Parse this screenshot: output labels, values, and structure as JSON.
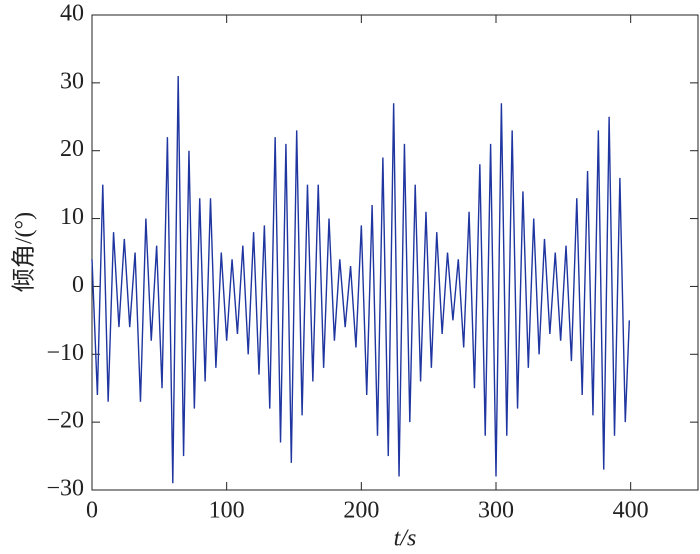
{
  "chart_data": {
    "type": "line",
    "xlabel": "t/s",
    "ylabel": "倾角/(°)",
    "x": [
      0,
      4,
      8,
      12,
      16,
      20,
      24,
      28,
      32,
      36,
      40,
      44,
      48,
      52,
      56,
      60,
      64,
      68,
      72,
      76,
      80,
      84,
      88,
      92,
      96,
      100,
      104,
      108,
      112,
      116,
      120,
      124,
      128,
      132,
      136,
      140,
      144,
      148,
      152,
      156,
      160,
      164,
      168,
      172,
      176,
      180,
      184,
      188,
      192,
      196,
      200,
      204,
      208,
      212,
      216,
      220,
      224,
      228,
      232,
      236,
      240,
      244,
      248,
      252,
      256,
      260,
      264,
      268,
      272,
      276,
      280,
      284,
      288,
      292,
      296,
      300,
      304,
      308,
      312,
      316,
      320,
      324,
      328,
      332,
      336,
      340,
      344,
      348,
      352,
      356,
      360,
      364,
      368,
      372,
      376,
      380,
      384,
      388,
      392,
      396,
      399
    ],
    "series": [
      {
        "color": "#1f35a0",
        "values": [
          4,
          -16,
          15,
          -17,
          8,
          -6,
          7,
          -6,
          5,
          -17,
          10,
          -8,
          6,
          -15,
          22,
          -29,
          31,
          -25,
          20,
          -18,
          13,
          -14,
          13,
          -12,
          5,
          -8,
          4,
          -7,
          6,
          -10,
          8,
          -13,
          9,
          -18,
          22,
          -23,
          21,
          -26,
          23,
          -19,
          15,
          -14,
          15,
          -12,
          10,
          -8,
          4,
          -6,
          3,
          -9,
          9,
          -16,
          12,
          -22,
          19,
          -25,
          27,
          -28,
          21,
          -20,
          15,
          -14,
          11,
          -12,
          8,
          -7,
          5,
          -5,
          4,
          -9,
          11,
          -15,
          18,
          -22,
          21,
          -28,
          27,
          -22,
          23,
          -18,
          14,
          -12,
          10,
          -10,
          7,
          -7,
          5,
          -8,
          6,
          -11,
          13,
          -16,
          17,
          -19,
          23,
          -27,
          25,
          -22,
          16,
          -20,
          -5
        ]
      }
    ],
    "xlim": [
      0,
      450
    ],
    "ylim": [
      -30,
      40
    ],
    "xticks": [
      0,
      100,
      200,
      300,
      400
    ],
    "yticks": [
      {
        "value": -30,
        "label": "−30"
      },
      {
        "value": -20,
        "label": "−20"
      },
      {
        "value": -10,
        "label": "−10"
      },
      0,
      10,
      20,
      30,
      40
    ]
  }
}
